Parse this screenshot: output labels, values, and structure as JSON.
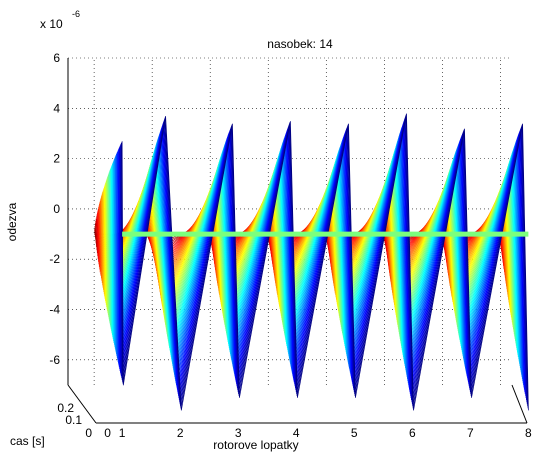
{
  "chart_data": {
    "type": "waterfall-3d",
    "title": "nasobek: 14",
    "xlabel": "rotorove lopatky",
    "ylabel": "odezva",
    "zlabel": "cas [s]",
    "exponent_prefix": "x 10",
    "exponent_power": "-6",
    "x_ticks": [
      "0",
      "1",
      "2",
      "3",
      "4",
      "5",
      "6",
      "7",
      "8"
    ],
    "y_ticks": [
      "6",
      "4",
      "2",
      "0",
      "-2",
      "-4",
      "-6"
    ],
    "z_ticks": [
      "0.2",
      "0.1",
      "0"
    ],
    "xlim": [
      1,
      8
    ],
    "ylim": [
      -6.5,
      6
    ],
    "zlim": [
      0,
      0.2
    ],
    "grid": true,
    "colormap": "jet",
    "peaks_upper": [
      {
        "x": 1.0,
        "value": 4.2
      },
      {
        "x": 1.75,
        "value": 5.2
      },
      {
        "x": 2.9,
        "value": 4.9
      },
      {
        "x": 3.9,
        "value": 5.0
      },
      {
        "x": 4.9,
        "value": 4.9
      },
      {
        "x": 5.9,
        "value": 5.3
      },
      {
        "x": 6.9,
        "value": 4.7
      },
      {
        "x": 7.9,
        "value": 4.9
      }
    ],
    "peaks_lower": [
      {
        "x": 1.0,
        "value": -5.5
      },
      {
        "x": 2.0,
        "value": -6.5
      },
      {
        "x": 3.0,
        "value": -6.0
      },
      {
        "x": 4.0,
        "value": -6.0
      },
      {
        "x": 5.0,
        "value": -6.0
      },
      {
        "x": 6.0,
        "value": -6.5
      },
      {
        "x": 7.0,
        "value": -6.0
      },
      {
        "x": 8.0,
        "value": -6.5
      }
    ]
  }
}
